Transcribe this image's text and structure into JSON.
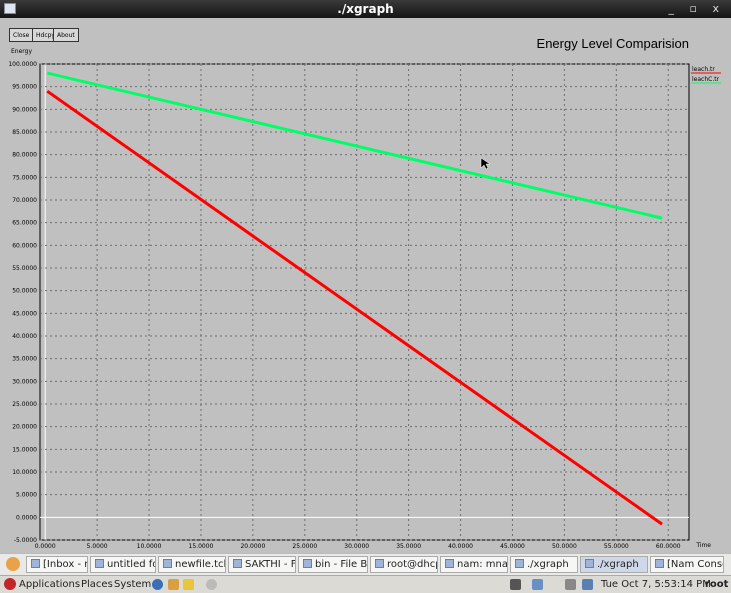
{
  "window": {
    "title": "./xgraph",
    "controls": "_ ▫ x"
  },
  "toolbar": {
    "close_label": "Close",
    "hdcpy_label": "Hdcpy",
    "about_label": "About"
  },
  "graph": {
    "title": "Energy Level Comparision",
    "ylabel": "Energy",
    "xlabel": "Time"
  },
  "chart_data": {
    "type": "line",
    "title": "Energy Level Comparision",
    "xlabel": "Time",
    "ylabel": "Energy",
    "xlim": [
      -0.5,
      62
    ],
    "ylim": [
      -5,
      100
    ],
    "x_ticks": [
      "0.0000",
      "5.0000",
      "10.0000",
      "15.0000",
      "20.0000",
      "25.0000",
      "30.0000",
      "35.0000",
      "40.0000",
      "45.0000",
      "50.0000",
      "55.0000",
      "60.0000"
    ],
    "y_ticks": [
      "100.0000",
      "95.0000",
      "90.0000",
      "85.0000",
      "80.0000",
      "75.0000",
      "70.0000",
      "65.0000",
      "60.0000",
      "55.0000",
      "50.0000",
      "45.0000",
      "40.0000",
      "35.0000",
      "30.0000",
      "25.0000",
      "20.0000",
      "15.0000",
      "10.0000",
      "5.0000",
      "0.0000",
      "-5.0000"
    ],
    "grid": true,
    "legend_position": "right",
    "series": [
      {
        "name": "leach.tr",
        "color": "#ff0000",
        "x": [
          0.2,
          59.4
        ],
        "y": [
          94.0,
          -1.5
        ]
      },
      {
        "name": "leachC.tr",
        "color": "#00ff66",
        "x": [
          0.2,
          59.4
        ],
        "y": [
          98.0,
          66.0
        ]
      }
    ]
  },
  "taskbar": {
    "items": [
      {
        "label": "[Inbox - new...",
        "icon": "mail-icon"
      },
      {
        "label": "untitled fold...",
        "icon": "folder-icon"
      },
      {
        "label": "newfile.tcl (...",
        "icon": "editor-icon"
      },
      {
        "label": "SAKTHI - File...",
        "icon": "folder-icon"
      },
      {
        "label": "bin - File Bro...",
        "icon": "folder-icon"
      },
      {
        "label": "root@dhcpp...",
        "icon": "terminal-icon"
      },
      {
        "label": "nam: mnam...",
        "icon": "window-icon"
      },
      {
        "label": "./xgraph",
        "icon": "window-icon"
      },
      {
        "label": "./xgraph",
        "icon": "window-icon"
      },
      {
        "label": "[Nam Conso...",
        "icon": "window-icon"
      }
    ]
  },
  "panel": {
    "applications": "Applications",
    "places": "Places",
    "system": "System",
    "clock": "Tue Oct  7,  5:53:14 PM",
    "user": "root"
  }
}
